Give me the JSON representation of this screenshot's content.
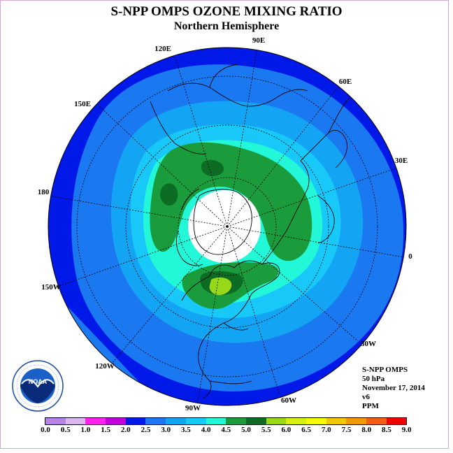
{
  "title": "S-NPP OMPS OZONE MIXING RATIO",
  "subtitle": "Northern Hemisphere",
  "lon_labels": [
    "90E",
    "60E",
    "30E",
    "0",
    "30W",
    "60W",
    "90W",
    "120W",
    "150W",
    "180",
    "150E",
    "120E"
  ],
  "info": {
    "line1": "S-NPP OMPS",
    "line2": "50 hPa",
    "line3": "November 17, 2014",
    "line4": "v6",
    "line5": "PPM"
  },
  "colorbar": {
    "ticks": [
      "0.0",
      "0.5",
      "1.0",
      "1.5",
      "2.0",
      "2.5",
      "3.0",
      "3.5",
      "4.0",
      "4.5",
      "5.0",
      "5.5",
      "6.0",
      "6.5",
      "7.0",
      "7.5",
      "8.0",
      "8.5",
      "9.0"
    ],
    "colors": [
      "#b983e8",
      "#dcb6f0",
      "#ff22ee",
      "#c000d8",
      "#0018e8",
      "#1a78f0",
      "#14a4f4",
      "#18c8f8",
      "#22f8d8",
      "#1a9c3c",
      "#0c6c24",
      "#98d818",
      "#d8f010",
      "#f8f800",
      "#f4c800",
      "#f49800",
      "#f06010",
      "#f00000",
      "#8c5a3c"
    ]
  },
  "legend_colors": {
    "bg_outer": "#0018e8",
    "band_2_5": "#1a78f0",
    "band_3_0": "#14a4f4",
    "band_3_5": "#18c8f8",
    "band_4_0": "#22f8d8",
    "band_4_5": "#1a9c3c",
    "band_5_0": "#0c6c24",
    "band_5_5": "#98d818",
    "polar_night": "#ffffff"
  },
  "logo_text": "NOAA"
}
